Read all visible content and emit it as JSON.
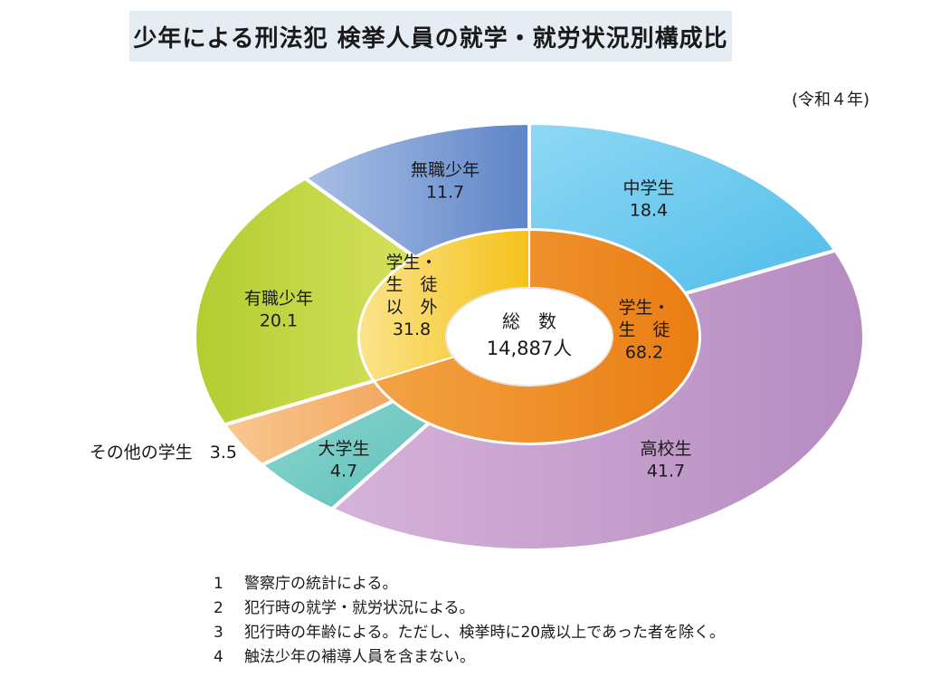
{
  "chart_data": {
    "type": "pie",
    "title": "少年による刑法犯 検挙人員の就学・就労状況別構成比",
    "subtitle": "(令和４年)",
    "unit": "%",
    "center": {
      "label": "総　数",
      "value": "14,887人"
    },
    "inner": [
      {
        "name": "学生・生徒",
        "lines": [
          "学生・",
          "生　徒"
        ],
        "value": 68.2,
        "color": "#ef8a1c"
      },
      {
        "name": "学生・生徒以外",
        "lines": [
          "学生・",
          "生　徒",
          "以　外"
        ],
        "value": 31.8,
        "color": "#f6c51f"
      }
    ],
    "outer": [
      {
        "name": "中学生",
        "value": 18.4,
        "color": "#6cc8ef"
      },
      {
        "name": "高校生",
        "value": 41.7,
        "color": "#bf92c8"
      },
      {
        "name": "大学生",
        "value": 4.7,
        "color": "#6cc8c0"
      },
      {
        "name": "その他の学生",
        "value": 3.5,
        "color": "#f7b574"
      },
      {
        "name": "有職少年",
        "value": 20.1,
        "color": "#c3d63e"
      },
      {
        "name": "無職少年",
        "value": 11.7,
        "color": "#7f9fd3"
      }
    ]
  },
  "notes": [
    {
      "num": "1",
      "text": "警察庁の統計による。"
    },
    {
      "num": "2",
      "text": "犯行時の就学・就労状況による。"
    },
    {
      "num": "3",
      "text": "犯行時の年齢による。ただし、検挙時に20歳以上であった者を除く。"
    },
    {
      "num": "4",
      "text": "触法少年の補導人員を含まない。"
    }
  ]
}
